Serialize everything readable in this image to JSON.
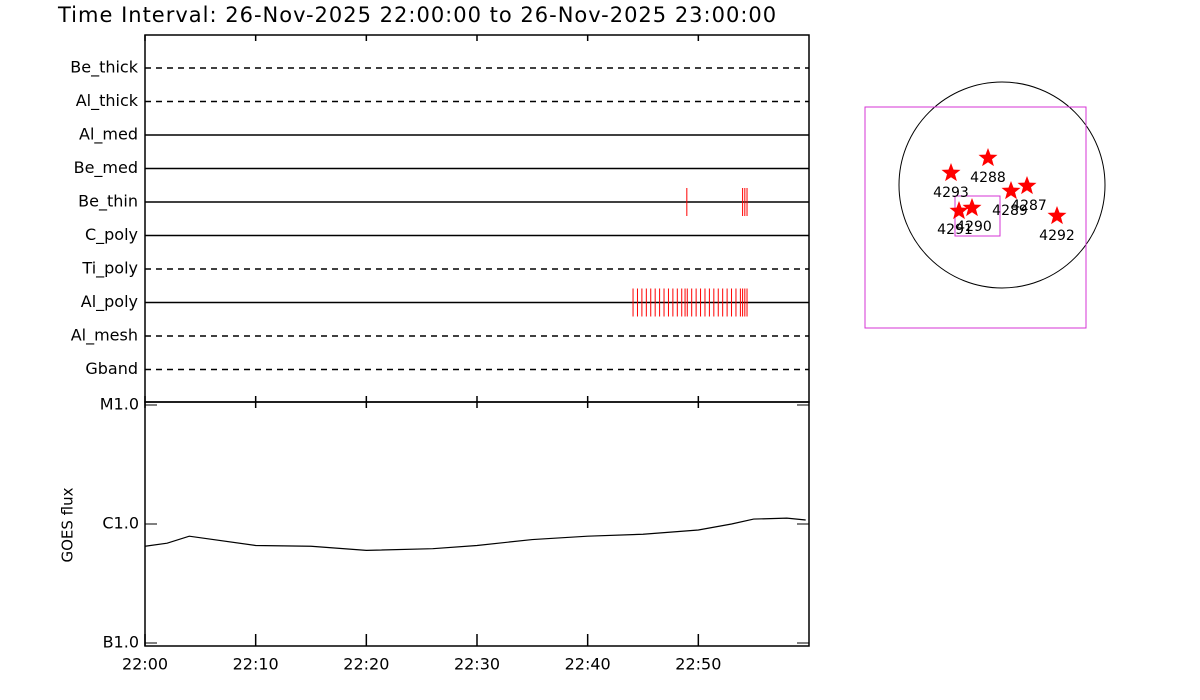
{
  "title": "Time Interval: 26-Nov-2025 22:00:00 to 26-Nov-2025 23:00:00",
  "chart_data": [
    {
      "type": "timeline",
      "xlim": [
        0,
        60
      ],
      "event_color": "#ff0000",
      "rows": [
        {
          "name": "Be_thick",
          "line_style": "dashed",
          "events": []
        },
        {
          "name": "Al_thick",
          "line_style": "dashed",
          "events": []
        },
        {
          "name": "Al_med",
          "line_style": "solid",
          "events": []
        },
        {
          "name": "Be_med",
          "line_style": "solid",
          "events": []
        },
        {
          "name": "Be_thin",
          "line_style": "solid",
          "events": [
            48.96,
            54.0,
            54.2,
            54.4
          ]
        },
        {
          "name": "C_poly",
          "line_style": "solid",
          "events": []
        },
        {
          "name": "Ti_poly",
          "line_style": "dashed",
          "events": []
        },
        {
          "name": "Al_poly",
          "line_style": "solid",
          "events": [
            44.1,
            44.5,
            44.9,
            45.3,
            45.7,
            46.1,
            46.5,
            46.9,
            47.3,
            47.7,
            48.1,
            48.5,
            48.8,
            49.0,
            49.4,
            49.8,
            50.2,
            50.6,
            51.0,
            51.4,
            51.8,
            52.2,
            52.6,
            53.0,
            53.4,
            53.8,
            54.0,
            54.2,
            54.4
          ]
        },
        {
          "name": "Al_mesh",
          "line_style": "dashed",
          "events": []
        },
        {
          "name": "Gband",
          "line_style": "dashed",
          "events": []
        }
      ]
    },
    {
      "type": "line",
      "ylabel": "GOES flux",
      "color": "#000000",
      "log_scale": true,
      "x": [
        0,
        2,
        4,
        10,
        15,
        20,
        26,
        30,
        35,
        40,
        45,
        50,
        53,
        55,
        58,
        59.7
      ],
      "values": [
        6.5e-07,
        6.9e-07,
        7.9e-07,
        6.6e-07,
        6.5e-07,
        6e-07,
        6.2e-07,
        6.6e-07,
        7.4e-07,
        7.9e-07,
        8.2e-07,
        8.9e-07,
        1e-06,
        1.1e-06,
        1.12e-06,
        1.08e-06
      ],
      "xlim": [
        0,
        60
      ],
      "xticks": [
        {
          "value": 0,
          "label": "22:00"
        },
        {
          "value": 10,
          "label": "22:10"
        },
        {
          "value": 20,
          "label": "22:20"
        },
        {
          "value": 30,
          "label": "22:30"
        },
        {
          "value": 40,
          "label": "22:40"
        },
        {
          "value": 50,
          "label": "22:50"
        }
      ],
      "ylim": [
        1e-07,
        1e-05
      ],
      "yticks": [
        {
          "value": 1e-07,
          "label": "B1.0"
        },
        {
          "value": 1e-06,
          "label": "C1.0"
        },
        {
          "value": 1e-05,
          "label": "M1.0"
        }
      ]
    },
    {
      "type": "map",
      "color": "#ff0000",
      "regions": [
        "4288",
        "4293",
        "4287",
        "4289",
        "4290",
        "4291",
        "4292"
      ]
    }
  ]
}
